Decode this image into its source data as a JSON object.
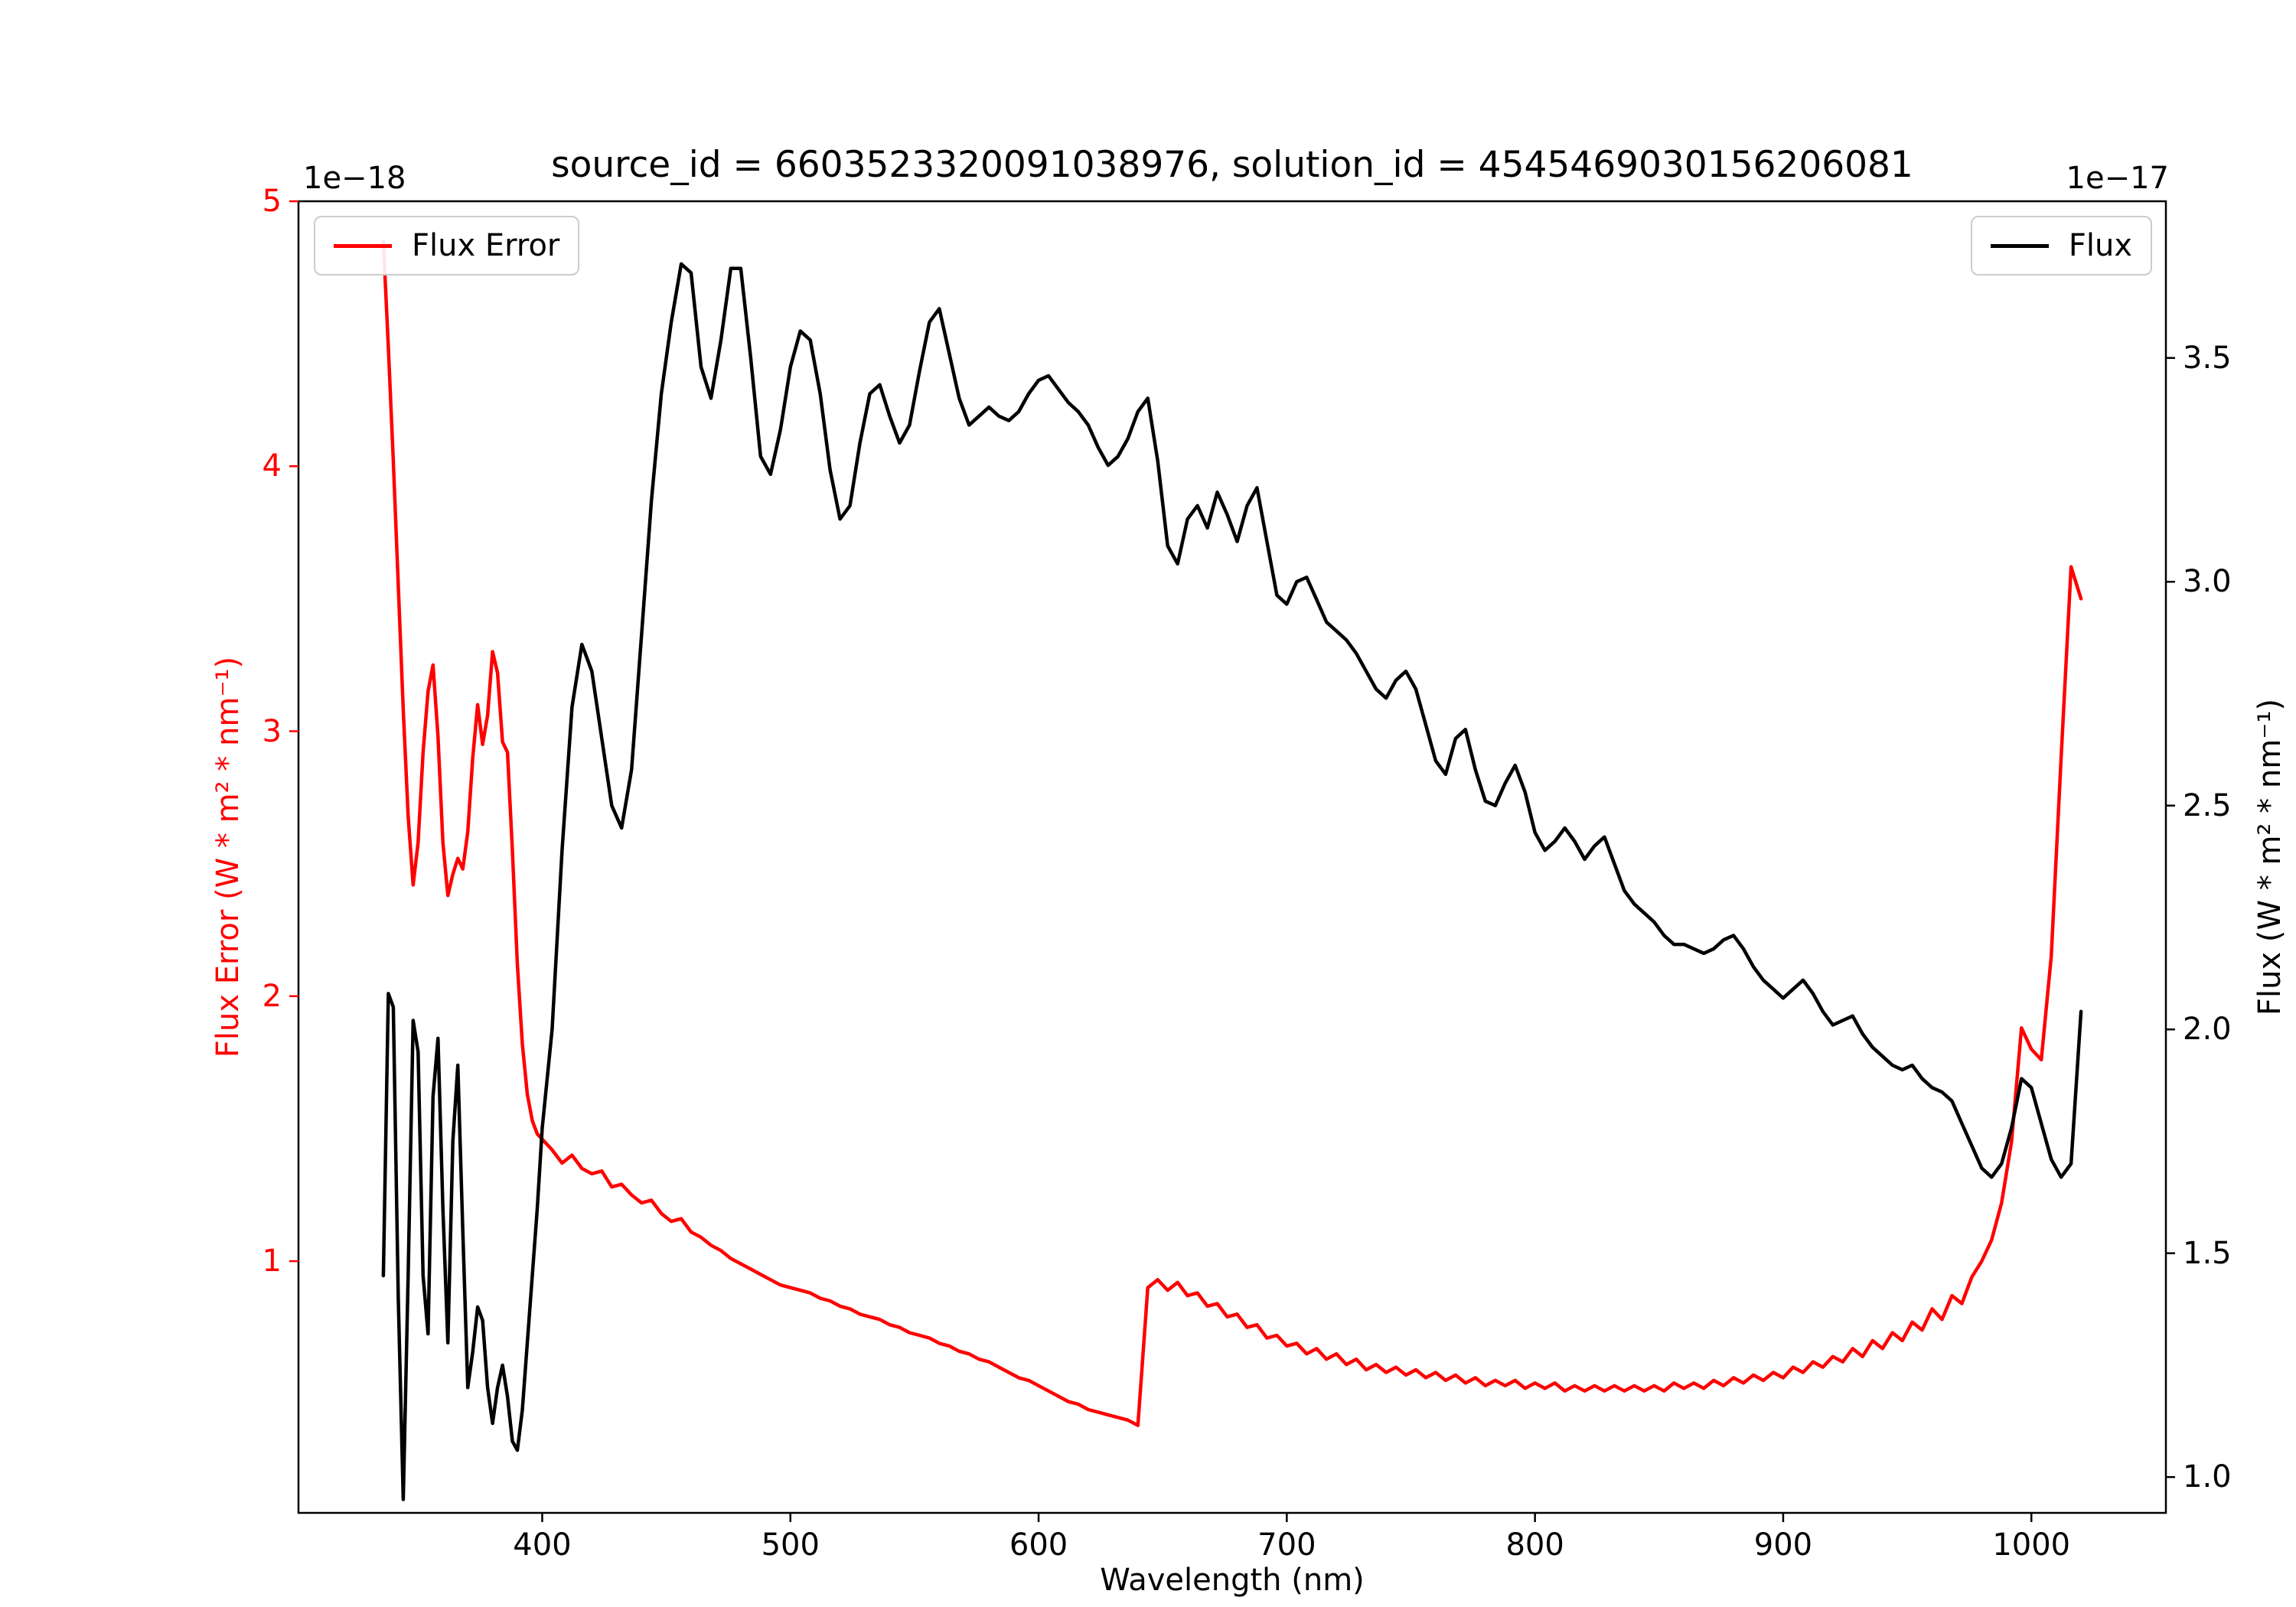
{
  "chart": {
    "title": "source_id = 6603523320091038976, solution_id = 4545469030156206081",
    "xlabel": "Wavelength (nm)",
    "ylabel_left": "Flux Error (W * m² * nm⁻¹)",
    "ylabel_right": "Flux (W * m² * nm⁻¹)",
    "offset_left": "1e−18",
    "offset_right": "1e−17",
    "legend_left": "Flux Error",
    "legend_right": "Flux"
  },
  "chart_data": {
    "type": "line",
    "title": "source_id = 6603523320091038976, solution_id = 4545469030156206081",
    "xlabel": "Wavelength (nm)",
    "x_lim": [
      301.8,
      1054.2
    ],
    "x_ticks": [
      400,
      500,
      600,
      700,
      800,
      900,
      1000
    ],
    "x_tick_labels": [
      "400",
      "500",
      "600",
      "700",
      "800",
      "900",
      "1000"
    ],
    "grid": false,
    "legend_positions": [
      "upper left",
      "upper right"
    ],
    "y_left": {
      "label": "Flux Error (W * m² * nm⁻¹)",
      "scale": "1e-18",
      "lim": [
        0.05,
        5.0
      ],
      "ticks": [
        1,
        2,
        3,
        4,
        5
      ],
      "tick_labels": [
        "1",
        "2",
        "3",
        "4",
        "5"
      ],
      "color": "#ff0000"
    },
    "y_right": {
      "label": "Flux (W * m² * nm⁻¹)",
      "scale": "1e-17",
      "lim": [
        0.92,
        3.85
      ],
      "ticks": [
        1.0,
        1.5,
        2.0,
        2.5,
        3.0,
        3.5
      ],
      "tick_labels": [
        "1.0",
        "1.5",
        "2.0",
        "2.5",
        "3.0",
        "3.5"
      ],
      "color": "#000000"
    },
    "x": [
      336,
      338,
      340,
      342,
      344,
      346,
      348,
      350,
      352,
      354,
      356,
      358,
      360,
      362,
      364,
      366,
      368,
      370,
      372,
      374,
      376,
      378,
      380,
      382,
      384,
      386,
      388,
      390,
      392,
      394,
      396,
      398,
      400,
      404,
      408,
      412,
      416,
      420,
      424,
      428,
      432,
      436,
      440,
      444,
      448,
      452,
      456,
      460,
      464,
      468,
      472,
      476,
      480,
      484,
      488,
      492,
      496,
      500,
      504,
      508,
      512,
      516,
      520,
      524,
      528,
      532,
      536,
      540,
      544,
      548,
      552,
      556,
      560,
      564,
      568,
      572,
      576,
      580,
      584,
      588,
      592,
      596,
      600,
      604,
      608,
      612,
      616,
      620,
      624,
      628,
      632,
      636,
      640,
      644,
      648,
      652,
      656,
      660,
      664,
      668,
      672,
      676,
      680,
      684,
      688,
      692,
      696,
      700,
      704,
      708,
      712,
      716,
      720,
      724,
      728,
      732,
      736,
      740,
      744,
      748,
      752,
      756,
      760,
      764,
      768,
      772,
      776,
      780,
      784,
      788,
      792,
      796,
      800,
      804,
      808,
      812,
      816,
      820,
      824,
      828,
      832,
      836,
      840,
      844,
      848,
      852,
      856,
      860,
      864,
      868,
      872,
      876,
      880,
      884,
      888,
      892,
      896,
      900,
      904,
      908,
      912,
      916,
      920,
      924,
      928,
      932,
      936,
      940,
      944,
      948,
      952,
      956,
      960,
      964,
      968,
      972,
      976,
      980,
      984,
      988,
      992,
      996,
      1000,
      1004,
      1008,
      1012,
      1016,
      1020
    ],
    "series": [
      {
        "name": "Flux Error",
        "axis": "left",
        "color": "#ff0000",
        "unit_scale": "1e-18",
        "values": [
          4.85,
          4.45,
          4.02,
          3.55,
          3.08,
          2.68,
          2.42,
          2.58,
          2.92,
          3.15,
          3.25,
          2.98,
          2.58,
          2.38,
          2.46,
          2.52,
          2.48,
          2.62,
          2.9,
          3.1,
          2.95,
          3.06,
          3.3,
          3.22,
          2.96,
          2.92,
          2.55,
          2.12,
          1.82,
          1.63,
          1.53,
          1.48,
          1.46,
          1.42,
          1.37,
          1.4,
          1.35,
          1.33,
          1.34,
          1.28,
          1.29,
          1.25,
          1.22,
          1.23,
          1.18,
          1.15,
          1.16,
          1.11,
          1.09,
          1.06,
          1.04,
          1.01,
          0.99,
          0.97,
          0.95,
          0.93,
          0.91,
          0.9,
          0.89,
          0.88,
          0.86,
          0.85,
          0.83,
          0.82,
          0.8,
          0.79,
          0.78,
          0.76,
          0.75,
          0.73,
          0.72,
          0.71,
          0.69,
          0.68,
          0.66,
          0.65,
          0.63,
          0.62,
          0.6,
          0.58,
          0.56,
          0.55,
          0.53,
          0.51,
          0.49,
          0.47,
          0.46,
          0.44,
          0.43,
          0.42,
          0.41,
          0.4,
          0.38,
          0.9,
          0.93,
          0.89,
          0.92,
          0.87,
          0.88,
          0.83,
          0.84,
          0.79,
          0.8,
          0.75,
          0.76,
          0.71,
          0.72,
          0.68,
          0.69,
          0.65,
          0.67,
          0.63,
          0.65,
          0.61,
          0.63,
          0.59,
          0.61,
          0.58,
          0.6,
          0.57,
          0.59,
          0.56,
          0.58,
          0.55,
          0.57,
          0.54,
          0.56,
          0.53,
          0.55,
          0.53,
          0.55,
          0.52,
          0.54,
          0.52,
          0.54,
          0.51,
          0.53,
          0.51,
          0.53,
          0.51,
          0.53,
          0.51,
          0.53,
          0.51,
          0.53,
          0.51,
          0.54,
          0.52,
          0.54,
          0.52,
          0.55,
          0.53,
          0.56,
          0.54,
          0.57,
          0.55,
          0.58,
          0.56,
          0.6,
          0.58,
          0.62,
          0.6,
          0.64,
          0.62,
          0.67,
          0.64,
          0.7,
          0.67,
          0.73,
          0.7,
          0.77,
          0.74,
          0.82,
          0.78,
          0.87,
          0.84,
          0.94,
          1.0,
          1.08,
          1.22,
          1.45,
          1.88,
          1.8,
          1.76,
          2.15,
          2.9,
          3.62,
          3.5
        ]
      },
      {
        "name": "Flux",
        "axis": "right",
        "color": "#000000",
        "unit_scale": "1e-17",
        "values": [
          1.45,
          2.08,
          2.05,
          1.4,
          0.95,
          1.45,
          2.02,
          1.95,
          1.45,
          1.32,
          1.85,
          1.98,
          1.6,
          1.3,
          1.75,
          1.92,
          1.55,
          1.2,
          1.28,
          1.38,
          1.35,
          1.2,
          1.12,
          1.2,
          1.25,
          1.18,
          1.08,
          1.06,
          1.15,
          1.3,
          1.45,
          1.6,
          1.78,
          2.0,
          2.4,
          2.72,
          2.86,
          2.8,
          2.65,
          2.5,
          2.45,
          2.58,
          2.88,
          3.18,
          3.42,
          3.58,
          3.71,
          3.69,
          3.48,
          3.41,
          3.54,
          3.7,
          3.7,
          3.5,
          3.28,
          3.24,
          3.34,
          3.48,
          3.56,
          3.54,
          3.42,
          3.25,
          3.14,
          3.17,
          3.31,
          3.42,
          3.44,
          3.37,
          3.31,
          3.35,
          3.47,
          3.58,
          3.61,
          3.51,
          3.41,
          3.35,
          3.37,
          3.39,
          3.37,
          3.36,
          3.38,
          3.42,
          3.45,
          3.46,
          3.43,
          3.4,
          3.38,
          3.35,
          3.3,
          3.26,
          3.28,
          3.32,
          3.38,
          3.41,
          3.27,
          3.08,
          3.04,
          3.14,
          3.17,
          3.12,
          3.2,
          3.15,
          3.09,
          3.17,
          3.21,
          3.09,
          2.97,
          2.95,
          3.0,
          3.01,
          2.96,
          2.91,
          2.89,
          2.87,
          2.84,
          2.8,
          2.76,
          2.74,
          2.78,
          2.8,
          2.76,
          2.68,
          2.6,
          2.57,
          2.65,
          2.67,
          2.58,
          2.51,
          2.5,
          2.55,
          2.59,
          2.53,
          2.44,
          2.4,
          2.42,
          2.45,
          2.42,
          2.38,
          2.41,
          2.43,
          2.37,
          2.31,
          2.28,
          2.26,
          2.24,
          2.21,
          2.19,
          2.19,
          2.18,
          2.17,
          2.18,
          2.2,
          2.21,
          2.18,
          2.14,
          2.11,
          2.09,
          2.07,
          2.09,
          2.11,
          2.08,
          2.04,
          2.01,
          2.02,
          2.03,
          1.99,
          1.96,
          1.94,
          1.92,
          1.91,
          1.92,
          1.89,
          1.87,
          1.86,
          1.84,
          1.79,
          1.74,
          1.69,
          1.67,
          1.7,
          1.78,
          1.89,
          1.87,
          1.79,
          1.71,
          1.67,
          1.7,
          2.04
        ]
      }
    ]
  }
}
